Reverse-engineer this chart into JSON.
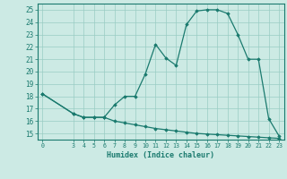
{
  "xlabel": "Humidex (Indice chaleur)",
  "background_color": "#cceae4",
  "line_color": "#1a7a6e",
  "grid_color": "#99ccc4",
  "x_values": [
    0,
    3,
    4,
    5,
    6,
    7,
    8,
    9,
    10,
    11,
    12,
    13,
    14,
    15,
    16,
    17,
    18,
    19,
    20,
    21,
    22,
    23
  ],
  "y_line1": [
    18.2,
    16.6,
    16.3,
    16.3,
    16.3,
    17.3,
    18.0,
    18.0,
    19.8,
    22.2,
    21.1,
    20.5,
    23.8,
    24.9,
    25.0,
    25.0,
    24.7,
    23.0,
    21.0,
    21.0,
    16.2,
    14.8
  ],
  "y_line2": [
    18.2,
    16.6,
    16.3,
    16.3,
    16.3,
    16.0,
    15.85,
    15.7,
    15.55,
    15.4,
    15.3,
    15.2,
    15.1,
    15.0,
    14.95,
    14.9,
    14.85,
    14.8,
    14.75,
    14.7,
    14.65,
    14.6
  ],
  "ylim": [
    14.5,
    25.5
  ],
  "yticks": [
    15,
    16,
    17,
    18,
    19,
    20,
    21,
    22,
    23,
    24,
    25
  ],
  "xticks": [
    0,
    3,
    4,
    5,
    6,
    7,
    8,
    9,
    10,
    11,
    12,
    13,
    14,
    15,
    16,
    17,
    18,
    19,
    20,
    21,
    22,
    23
  ]
}
